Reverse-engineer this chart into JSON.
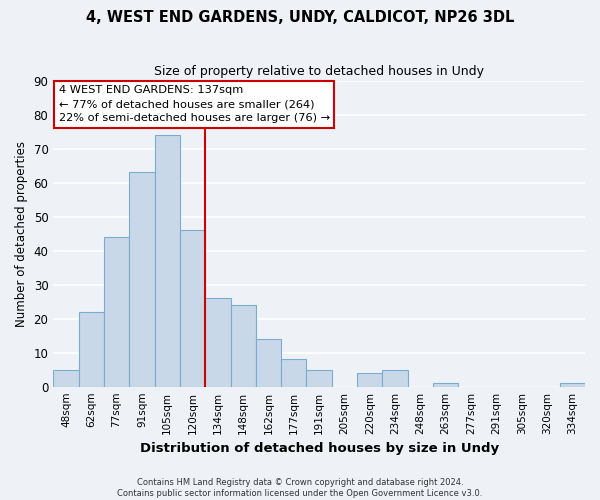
{
  "title": "4, WEST END GARDENS, UNDY, CALDICOT, NP26 3DL",
  "subtitle": "Size of property relative to detached houses in Undy",
  "xlabel": "Distribution of detached houses by size in Undy",
  "ylabel": "Number of detached properties",
  "categories": [
    "48sqm",
    "62sqm",
    "77sqm",
    "91sqm",
    "105sqm",
    "120sqm",
    "134sqm",
    "148sqm",
    "162sqm",
    "177sqm",
    "191sqm",
    "205sqm",
    "220sqm",
    "234sqm",
    "248sqm",
    "263sqm",
    "277sqm",
    "291sqm",
    "305sqm",
    "320sqm",
    "334sqm"
  ],
  "values": [
    5,
    22,
    44,
    63,
    74,
    46,
    26,
    24,
    14,
    8,
    5,
    0,
    4,
    5,
    0,
    1,
    0,
    0,
    0,
    0,
    1
  ],
  "bar_color": "#c8d8e8",
  "bar_edge_color": "#7aaccf",
  "vline_color": "#cc0000",
  "vline_index": 6,
  "annotation_title": "4 WEST END GARDENS: 137sqm",
  "annotation_line1": "← 77% of detached houses are smaller (264)",
  "annotation_line2": "22% of semi-detached houses are larger (76) →",
  "annotation_box_color": "#ffffff",
  "annotation_box_edge_color": "#cc0000",
  "ylim": [
    0,
    90
  ],
  "yticks": [
    0,
    10,
    20,
    30,
    40,
    50,
    60,
    70,
    80,
    90
  ],
  "footer1": "Contains HM Land Registry data © Crown copyright and database right 2024.",
  "footer2": "Contains public sector information licensed under the Open Government Licence v3.0.",
  "background_color": "#eef2f7",
  "grid_color": "#ffffff"
}
